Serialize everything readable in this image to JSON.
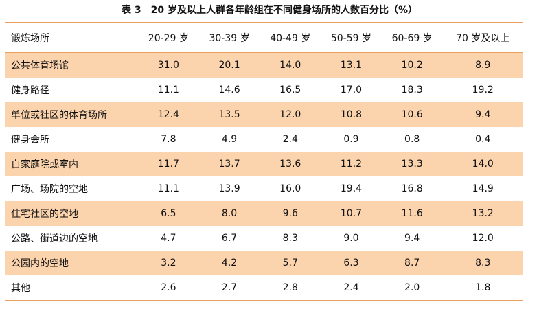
{
  "title": "表 3　20 岁及以上人群各年龄组在不同健身场所的人数百分比（%）",
  "table": {
    "header": [
      "锻炼场所",
      "20-29 岁",
      "30-39 岁",
      "40-49 岁",
      "50-59 岁",
      "60-69 岁",
      "70 岁及以上"
    ],
    "rows": [
      [
        "公共体育场馆",
        "31.0",
        "20.1",
        "14.0",
        "13.1",
        "10.2",
        "8.9"
      ],
      [
        "健身路径",
        "11.1",
        "14.6",
        "16.5",
        "17.0",
        "18.3",
        "19.2"
      ],
      [
        "单位或社区的体育场所",
        "12.4",
        "13.5",
        "12.0",
        "10.8",
        "10.6",
        "9.4"
      ],
      [
        "健身会所",
        "7.8",
        "4.9",
        "2.4",
        "0.9",
        "0.8",
        "0.4"
      ],
      [
        "自家庭院或室内",
        "11.7",
        "13.7",
        "13.6",
        "11.2",
        "13.3",
        "14.0"
      ],
      [
        "广场、场院的空地",
        "11.1",
        "13.9",
        "16.0",
        "19.4",
        "16.8",
        "14.9"
      ],
      [
        "住宅社区的空地",
        "6.5",
        "8.0",
        "9.6",
        "10.7",
        "11.6",
        "13.2"
      ],
      [
        "公路、街道边的空地",
        "4.7",
        "6.7",
        "8.3",
        "9.0",
        "9.4",
        "12.0"
      ],
      [
        "公园内的空地",
        "3.2",
        "4.2",
        "5.7",
        "6.3",
        "8.7",
        "8.3"
      ],
      [
        "其他",
        "2.6",
        "2.7",
        "2.8",
        "2.4",
        "2.0",
        "1.8"
      ]
    ]
  }
}
